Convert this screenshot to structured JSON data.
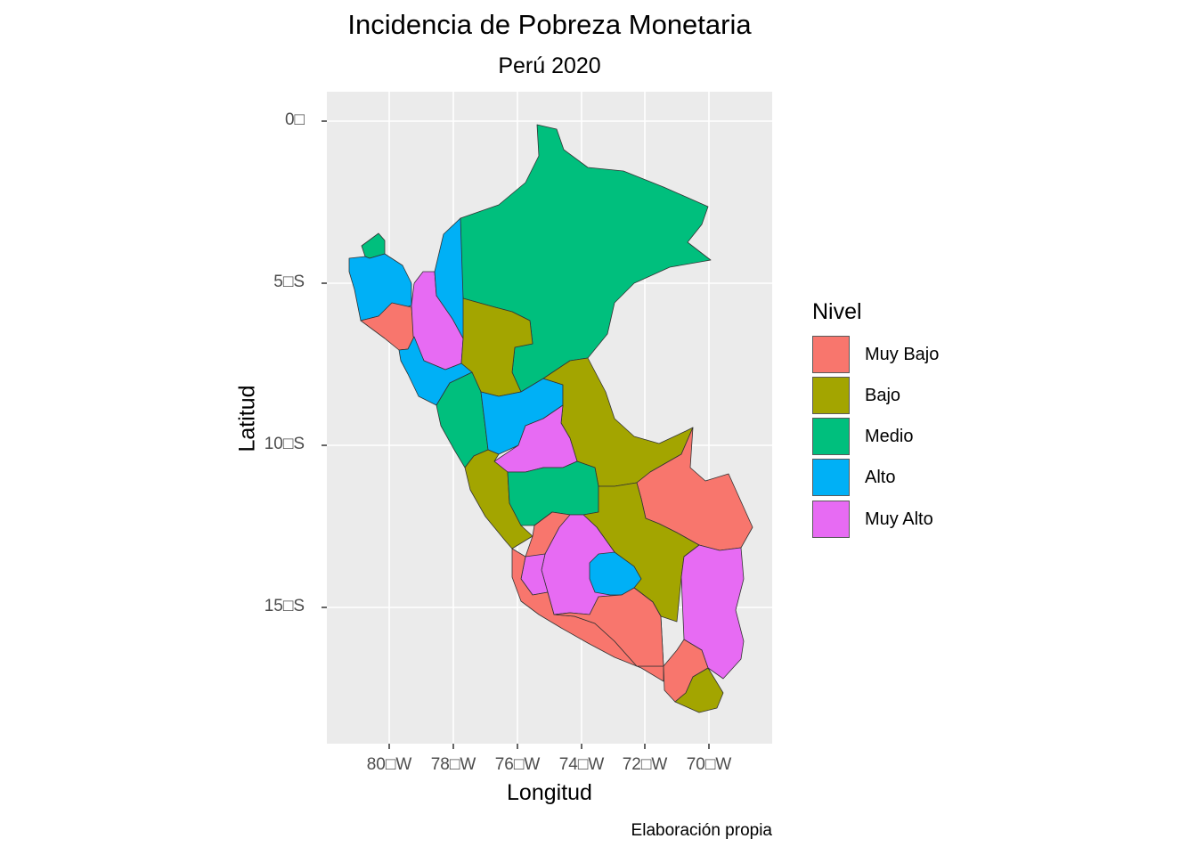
{
  "title": "Incidencia de Pobreza Monetaria",
  "subtitle": "Perú 2020",
  "caption": "Elaboración propia",
  "xlabel": "Longitud",
  "ylabel": "Latitud",
  "x_ticks": [
    "80□W",
    "78□W",
    "76□W",
    "74□W",
    "72□W",
    "70□W"
  ],
  "y_ticks": [
    "0□",
    "5□S",
    "10□S",
    "15□S"
  ],
  "legend": {
    "title": "Nivel",
    "items": [
      {
        "label": "Muy Bajo",
        "color": "#F8766D"
      },
      {
        "label": "Bajo",
        "color": "#A3A500"
      },
      {
        "label": "Medio",
        "color": "#00BF7D"
      },
      {
        "label": "Alto",
        "color": "#00B0F6"
      },
      {
        "label": "Muy Alto",
        "color": "#E76BF3"
      }
    ]
  },
  "regions": [
    {
      "level": "Medio"
    },
    {
      "level": "Medio"
    },
    {
      "level": "Alto"
    },
    {
      "level": "Muy Bajo"
    },
    {
      "level": "Muy Alto"
    },
    {
      "level": "Alto"
    },
    {
      "level": "Bajo"
    },
    {
      "level": "Alto"
    },
    {
      "level": "Medio"
    },
    {
      "level": "Alto"
    },
    {
      "level": "Bajo"
    },
    {
      "level": "Muy Alto"
    },
    {
      "level": "Bajo"
    },
    {
      "level": "Medio"
    },
    {
      "level": "Muy Bajo"
    },
    {
      "level": "Bajo"
    },
    {
      "level": "Muy Bajo"
    },
    {
      "level": "Muy Alto"
    },
    {
      "level": "Muy Alto"
    },
    {
      "level": "Alto"
    },
    {
      "level": "Muy Bajo"
    },
    {
      "level": "Muy Alto"
    },
    {
      "level": "Muy Bajo"
    },
    {
      "level": "Bajo"
    },
    {
      "level": "Muy Bajo"
    }
  ]
}
